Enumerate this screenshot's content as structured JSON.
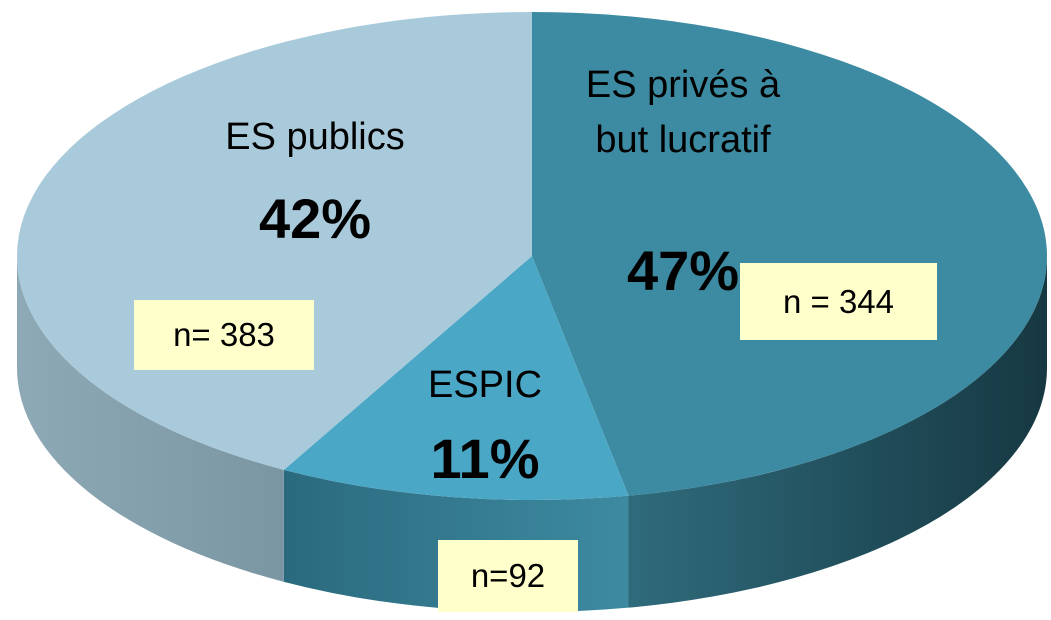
{
  "chart_data": {
    "type": "pie3d",
    "categories": [
      "ES privés à but lucratif",
      "ESPIC",
      "ES publics"
    ],
    "values": [
      47,
      11,
      42
    ],
    "value_labels": [
      "47%",
      "11%",
      "42%"
    ],
    "counts": [
      344,
      92,
      383
    ],
    "count_labels": [
      "n = 344",
      "n=92",
      "n= 383"
    ],
    "colors": [
      "#3c8ba2",
      "#4aa7c5",
      "#a9cadb"
    ]
  }
}
